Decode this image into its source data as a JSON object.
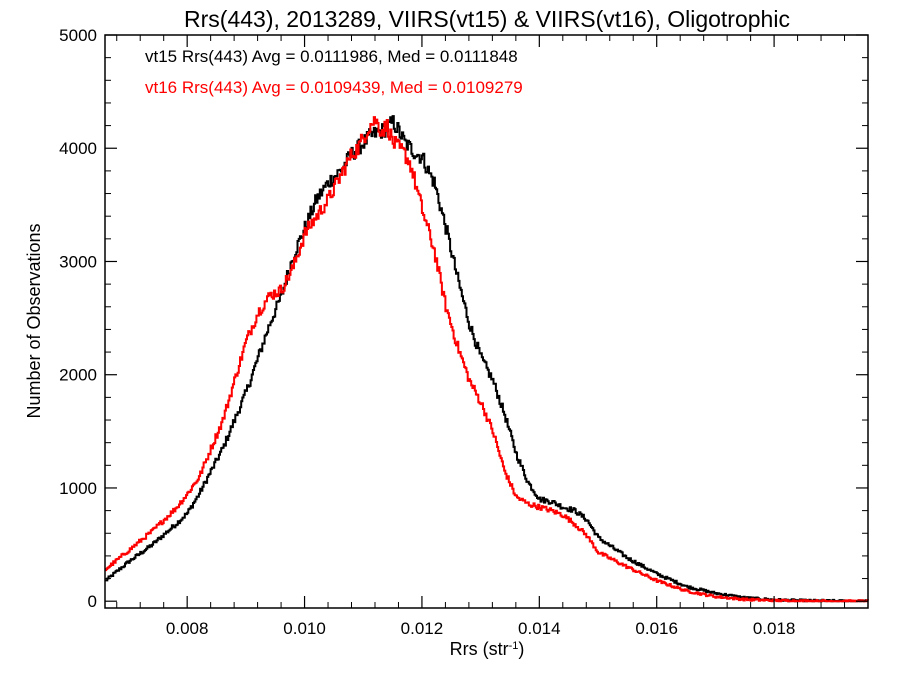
{
  "chart_data": {
    "type": "line",
    "title": "Rrs(443), 2013289, VIIRS(vt15) & VIIRS(vt16), Oligotrophic",
    "xlabel": "Rrs (str",
    "xlabel_sup": "-1",
    "xlabel_end": ")",
    "ylabel": "Number of Observations",
    "xlim": [
      0.0066,
      0.0196
    ],
    "ylim": [
      -60,
      5000
    ],
    "x_ticks": [
      0.008,
      0.01,
      0.012,
      0.014,
      0.016,
      0.018
    ],
    "x_tick_labels": [
      "0.008",
      "0.010",
      "0.012",
      "0.014",
      "0.016",
      "0.018"
    ],
    "y_ticks": [
      0,
      1000,
      2000,
      3000,
      4000,
      5000
    ],
    "y_tick_labels": [
      "0",
      "1000",
      "2000",
      "3000",
      "4000",
      "5000"
    ],
    "grid": false,
    "annotations": [
      {
        "text": "vt15 Rrs(443) Avg = 0.0111986, Med = 0.0111848",
        "color": "#000000"
      },
      {
        "text": "vt16 Rrs(443) Avg = 0.0109439, Med = 0.0109279",
        "color": "#ff0000"
      }
    ],
    "series": [
      {
        "color": "#000000",
        "x": [
          0.0066,
          0.007,
          0.0074,
          0.0078,
          0.008,
          0.0082,
          0.0084,
          0.0086,
          0.0088,
          0.009,
          0.0092,
          0.0094,
          0.0096,
          0.0098,
          0.01,
          0.0102,
          0.0104,
          0.0106,
          0.0108,
          0.011,
          0.0111,
          0.0112,
          0.0113,
          0.0114,
          0.0115,
          0.0116,
          0.0117,
          0.0118,
          0.0119,
          0.012,
          0.0121,
          0.0122,
          0.0124,
          0.0126,
          0.0128,
          0.013,
          0.0132,
          0.0134,
          0.0136,
          0.0138,
          0.014,
          0.0142,
          0.0144,
          0.0146,
          0.0148,
          0.015,
          0.0155,
          0.016,
          0.0165,
          0.017,
          0.0175,
          0.018,
          0.0185,
          0.019,
          0.0196
        ],
        "y": [
          180,
          350,
          500,
          680,
          780,
          950,
          1150,
          1350,
          1600,
          1850,
          2150,
          2450,
          2700,
          3050,
          3300,
          3550,
          3700,
          3800,
          3950,
          4050,
          4100,
          4130,
          4150,
          4180,
          4230,
          4150,
          4050,
          4000,
          3950,
          3920,
          3800,
          3700,
          3300,
          2850,
          2450,
          2150,
          1950,
          1650,
          1300,
          1050,
          900,
          880,
          830,
          800,
          720,
          560,
          380,
          240,
          130,
          70,
          30,
          12,
          5,
          2,
          0
        ]
      },
      {
        "color": "#ff0000",
        "x": [
          0.0066,
          0.007,
          0.0074,
          0.0078,
          0.008,
          0.0082,
          0.0084,
          0.0086,
          0.0088,
          0.009,
          0.0092,
          0.0094,
          0.0096,
          0.0098,
          0.01,
          0.0102,
          0.0104,
          0.0106,
          0.0107,
          0.0108,
          0.0109,
          0.011,
          0.0111,
          0.0112,
          0.0113,
          0.0114,
          0.0115,
          0.0116,
          0.0117,
          0.0118,
          0.0119,
          0.012,
          0.0122,
          0.0124,
          0.0126,
          0.0128,
          0.013,
          0.0132,
          0.0134,
          0.0136,
          0.0138,
          0.014,
          0.0142,
          0.0144,
          0.0146,
          0.0148,
          0.015,
          0.0155,
          0.016,
          0.0165,
          0.017,
          0.0175,
          0.018,
          0.0185,
          0.019,
          0.0196
        ],
        "y": [
          280,
          450,
          620,
          820,
          950,
          1100,
          1350,
          1600,
          1950,
          2300,
          2550,
          2700,
          2750,
          2950,
          3250,
          3400,
          3550,
          3750,
          3850,
          3950,
          4000,
          4100,
          4200,
          4250,
          4150,
          4200,
          4050,
          4000,
          3950,
          3850,
          3650,
          3450,
          3100,
          2600,
          2250,
          1950,
          1750,
          1500,
          1150,
          920,
          860,
          830,
          800,
          760,
          680,
          580,
          430,
          300,
          180,
          90,
          40,
          15,
          6,
          2,
          0,
          0
        ]
      }
    ]
  }
}
